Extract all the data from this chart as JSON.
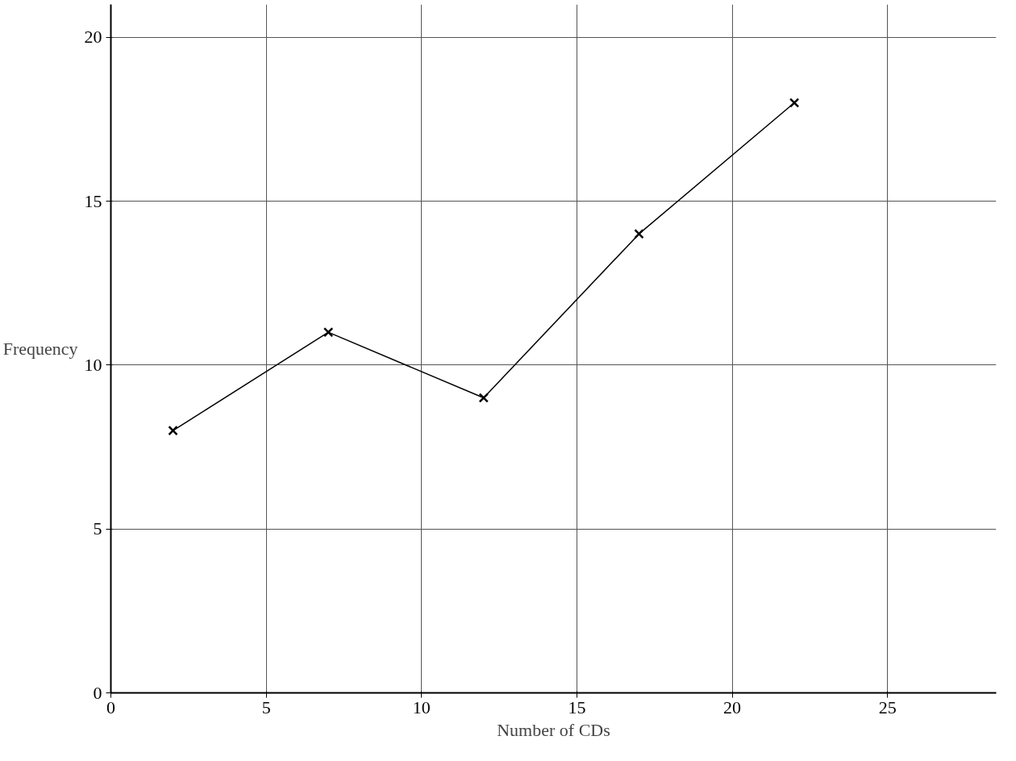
{
  "chart_data": {
    "type": "line",
    "xlabel": "Number of CDs",
    "ylabel": "Frequency",
    "x": [
      2,
      7,
      12,
      17,
      22
    ],
    "values": [
      8,
      11,
      9,
      14,
      18
    ],
    "color": "#000000",
    "marker": "cross",
    "xlim": [
      0,
      28.5
    ],
    "ylim": [
      0,
      21
    ],
    "xticks": [
      0,
      5,
      10,
      15,
      20,
      25
    ],
    "yticks": [
      0,
      5,
      10,
      15,
      20
    ],
    "grid": true
  }
}
